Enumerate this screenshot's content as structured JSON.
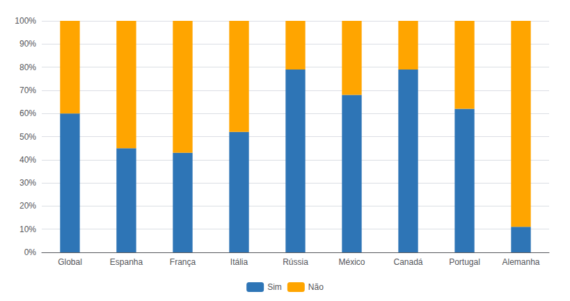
{
  "chart_data": {
    "type": "bar",
    "stacked": true,
    "categories": [
      "Global",
      "Espanha",
      "França",
      "Itália",
      "Rússia",
      "México",
      "Canadá",
      "Portugal",
      "Alemanha"
    ],
    "series": [
      {
        "name": "Sim",
        "color": "#2E75B6",
        "values": [
          60,
          45,
          43,
          52,
          79,
          68,
          79,
          62,
          11
        ]
      },
      {
        "name": "Não",
        "color": "#FFA500",
        "values": [
          40,
          55,
          57,
          48,
          21,
          32,
          21,
          38,
          89
        ]
      }
    ],
    "ylim": [
      0,
      100
    ],
    "yticks": [
      {
        "value": 0,
        "label": "0%"
      },
      {
        "value": 10,
        "label": "10%"
      },
      {
        "value": 20,
        "label": "20%"
      },
      {
        "value": 30,
        "label": "30%"
      },
      {
        "value": 40,
        "label": "40%"
      },
      {
        "value": 50,
        "label": "50%"
      },
      {
        "value": 60,
        "label": "60%"
      },
      {
        "value": 70,
        "label": "70%"
      },
      {
        "value": 80,
        "label": "80%"
      },
      {
        "value": 90,
        "label": "90%"
      },
      {
        "value": 100,
        "label": "100%"
      }
    ],
    "grid": true,
    "legend": "bottom"
  }
}
